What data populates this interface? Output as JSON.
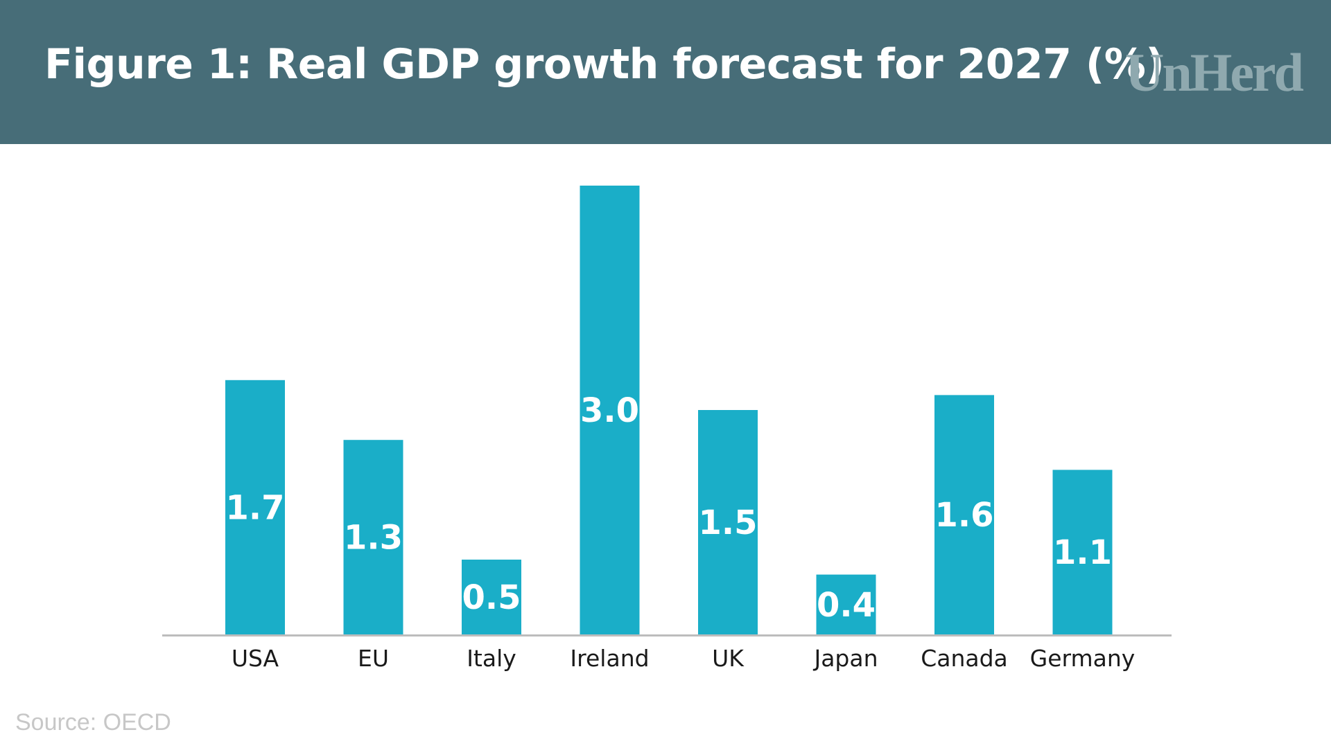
{
  "header": {
    "title": "Figure 1: Real GDP growth forecast for 2027 (%)",
    "logo": "UnHerd"
  },
  "footer": {
    "source": "Source: OECD"
  },
  "colors": {
    "header_bg": "#476d78",
    "bar": "#1aaec8",
    "axis": "#bdbdbd",
    "label_text": "#ffffff",
    "category_text": "#1a1a1a"
  },
  "chart_data": {
    "type": "bar",
    "title": "Figure 1: Real GDP growth forecast for 2027 (%)",
    "categories": [
      "USA",
      "EU",
      "Italy",
      "Ireland",
      "UK",
      "Japan",
      "Canada",
      "Germany"
    ],
    "values": [
      1.7,
      1.3,
      0.5,
      3.0,
      1.5,
      0.4,
      1.6,
      1.1
    ],
    "data_labels": [
      "1.7",
      "1.3",
      "0.5",
      "3.0",
      "1.5",
      "0.4",
      "1.6",
      "1.1"
    ],
    "xlabel": "",
    "ylabel": "",
    "ylim": [
      0,
      3.0
    ],
    "grid": false,
    "legend": "none"
  }
}
